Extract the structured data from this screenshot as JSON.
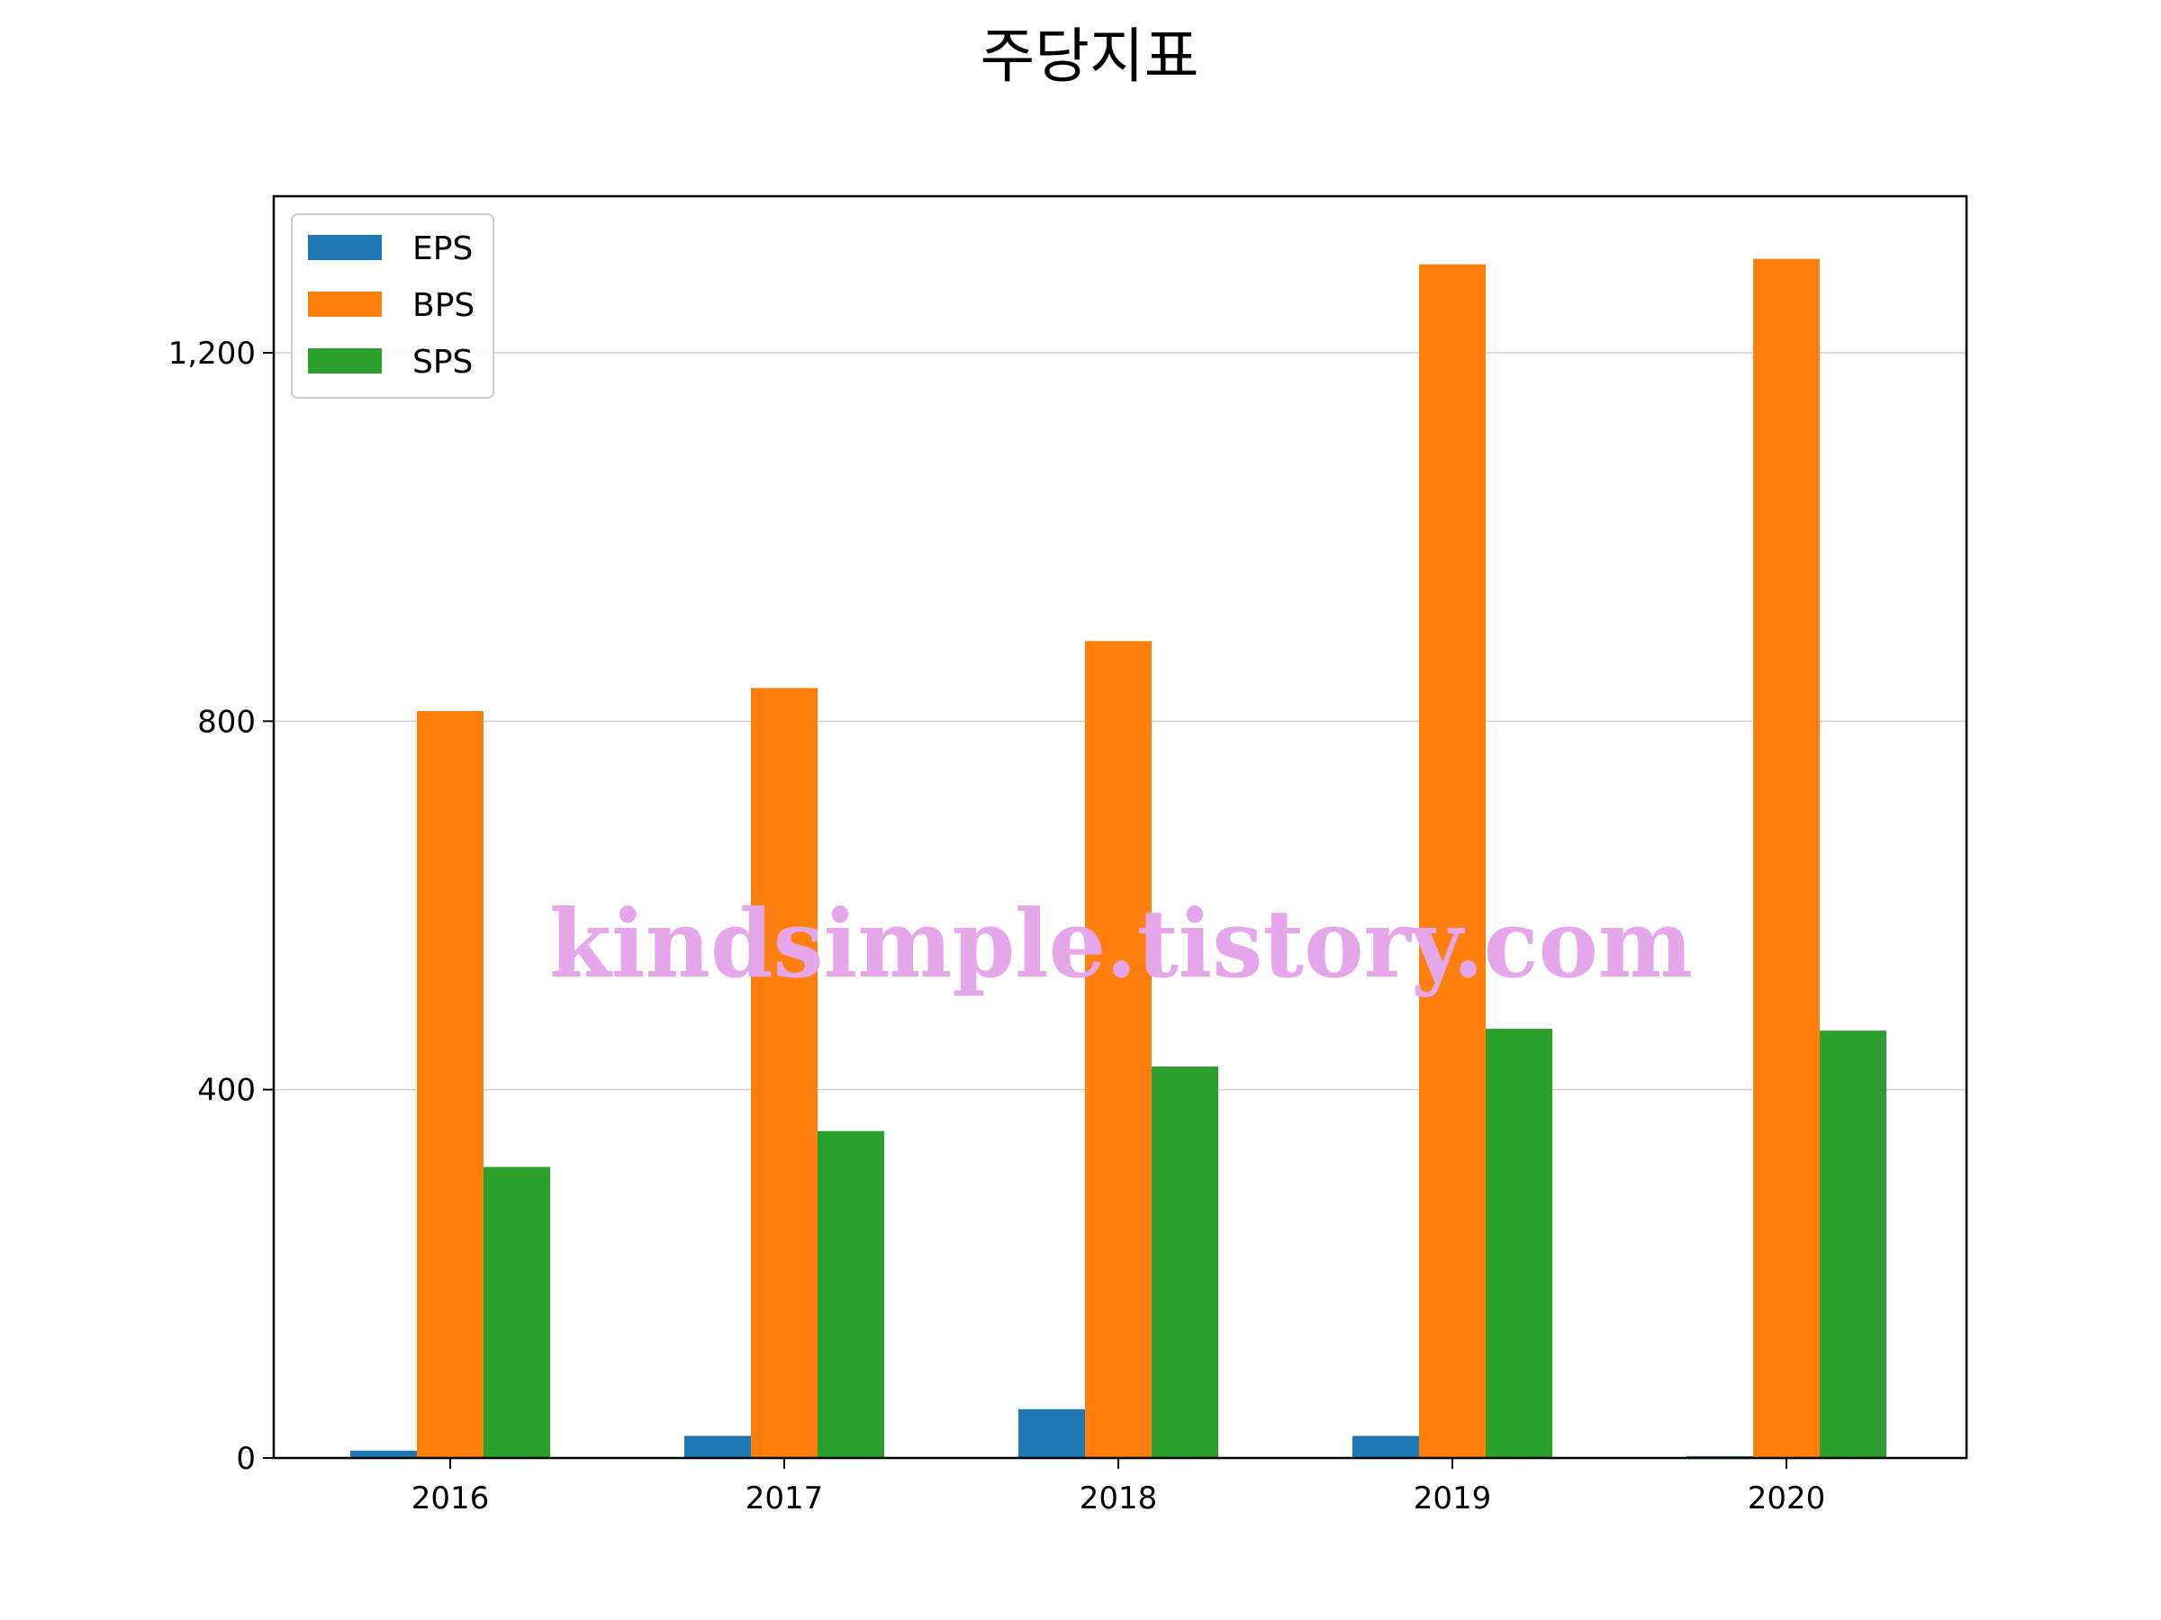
{
  "chart_data": {
    "type": "bar",
    "title": "주당지표",
    "xlabel": "",
    "ylabel": "",
    "categories": [
      "2016",
      "2017",
      "2018",
      "2019",
      "2020"
    ],
    "series": [
      {
        "name": "EPS",
        "color": "#1f77b4",
        "values": [
          8,
          24,
          53,
          24,
          2
        ]
      },
      {
        "name": "BPS",
        "color": "#ff7f0e",
        "values": [
          811,
          836,
          887,
          1296,
          1302
        ]
      },
      {
        "name": "SPS",
        "color": "#2ca02c",
        "values": [
          316,
          355,
          425,
          466,
          464
        ]
      }
    ],
    "ylim": [
      0,
      1370
    ],
    "yticks": [
      0,
      400,
      800,
      1200
    ],
    "ytick_labels": [
      "0",
      "400",
      "800",
      "1,200"
    ],
    "grid": "y",
    "legend_position": "upper-left"
  },
  "watermark": "kindsimple.tistory.com"
}
